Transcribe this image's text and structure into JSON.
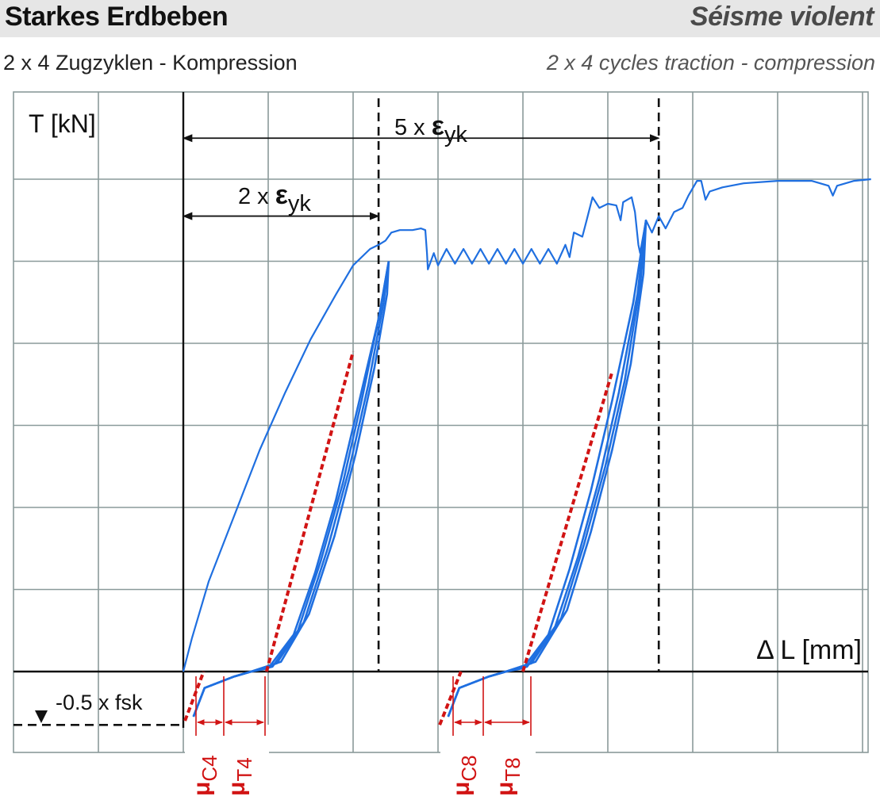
{
  "header": {
    "title_de": "Starkes Erdbeben",
    "title_fr": "Séisme violent"
  },
  "subtitle": {
    "de": "2 x 4 Zugzyklen - Kompression",
    "fr": "2 x 4 cycles traction - compression"
  },
  "colors": {
    "curve": "#1f6fe0",
    "fit": "#d11414",
    "grid": "#8a9a9a",
    "header_bg": "#e6e6e6",
    "ink": "#111111"
  },
  "chart_data": {
    "type": "line",
    "title": "Starkes Erdbeben",
    "ylabel": "T [kN]",
    "xlabel": "Δ L [mm]",
    "grid": true,
    "x_range": [
      -2,
      8.1
    ],
    "y_range": [
      -1,
      7
    ],
    "series": [
      {
        "points": [
          [
            0,
            0
          ],
          [
            0.1,
            0.4
          ],
          [
            0.3,
            1.1
          ],
          [
            0.6,
            1.9
          ],
          [
            0.9,
            2.7
          ],
          [
            1.2,
            3.4
          ],
          [
            1.5,
            4.05
          ],
          [
            1.8,
            4.6
          ],
          [
            2.0,
            4.95
          ],
          [
            2.2,
            5.15
          ],
          [
            2.3,
            5.2
          ],
          [
            2.38,
            5.25
          ],
          [
            2.45,
            5.35
          ],
          [
            2.55,
            5.38
          ],
          [
            2.7,
            5.38
          ],
          [
            2.8,
            5.4
          ],
          [
            2.85,
            5.38
          ],
          [
            2.87,
            5.1
          ],
          [
            2.88,
            4.9
          ],
          [
            2.95,
            5.1
          ],
          [
            3.0,
            4.95
          ],
          [
            3.1,
            5.15
          ],
          [
            3.2,
            4.97
          ],
          [
            3.3,
            5.15
          ],
          [
            3.4,
            4.97
          ],
          [
            3.5,
            5.15
          ],
          [
            3.6,
            4.97
          ],
          [
            3.7,
            5.15
          ],
          [
            3.8,
            4.97
          ],
          [
            3.9,
            5.15
          ],
          [
            4.0,
            4.97
          ],
          [
            4.1,
            5.15
          ],
          [
            4.2,
            4.97
          ],
          [
            4.3,
            5.15
          ],
          [
            4.4,
            4.97
          ],
          [
            4.5,
            5.2
          ],
          [
            4.55,
            5.05
          ],
          [
            4.6,
            5.35
          ],
          [
            4.7,
            5.3
          ],
          [
            4.75,
            5.5
          ],
          [
            4.82,
            5.78
          ],
          [
            4.9,
            5.65
          ],
          [
            5.0,
            5.7
          ],
          [
            5.1,
            5.68
          ],
          [
            5.15,
            5.5
          ],
          [
            5.18,
            5.72
          ],
          [
            5.28,
            5.78
          ],
          [
            5.32,
            5.6
          ],
          [
            5.36,
            5.2
          ],
          [
            5.38,
            5.1
          ],
          [
            5.45,
            5.5
          ],
          [
            5.52,
            5.35
          ],
          [
            5.6,
            5.55
          ],
          [
            5.68,
            5.4
          ],
          [
            5.78,
            5.6
          ],
          [
            5.88,
            5.65
          ],
          [
            5.95,
            5.8
          ],
          [
            6.05,
            5.98
          ],
          [
            6.1,
            5.98
          ],
          [
            6.15,
            5.75
          ],
          [
            6.2,
            5.85
          ],
          [
            6.35,
            5.9
          ],
          [
            6.6,
            5.95
          ],
          [
            7.0,
            5.98
          ],
          [
            7.4,
            5.98
          ],
          [
            7.6,
            5.92
          ],
          [
            7.65,
            5.8
          ],
          [
            7.7,
            5.92
          ],
          [
            7.9,
            5.98
          ],
          [
            8.1,
            6.0
          ]
        ]
      },
      {
        "points": [
          [
            0.12,
            -0.55
          ],
          [
            0.25,
            -0.2
          ],
          [
            0.6,
            -0.06
          ],
          [
            0.8,
            0
          ],
          [
            1.0,
            0.04
          ],
          [
            1.3,
            0.45
          ],
          [
            1.55,
            1.2
          ],
          [
            1.8,
            2.1
          ],
          [
            2.05,
            3.2
          ],
          [
            2.3,
            4.3
          ],
          [
            2.42,
            5.0
          ]
        ]
      },
      {
        "points": [
          [
            0.12,
            -0.55
          ],
          [
            0.25,
            -0.2
          ],
          [
            0.6,
            -0.06
          ],
          [
            0.8,
            0
          ],
          [
            1.05,
            0.06
          ],
          [
            1.35,
            0.5
          ],
          [
            1.62,
            1.35
          ],
          [
            1.88,
            2.3
          ],
          [
            2.1,
            3.3
          ],
          [
            2.32,
            4.4
          ],
          [
            2.42,
            5.0
          ]
        ]
      },
      {
        "points": [
          [
            0.12,
            -0.55
          ],
          [
            0.25,
            -0.2
          ],
          [
            0.6,
            -0.06
          ],
          [
            0.8,
            0
          ],
          [
            1.1,
            0.1
          ],
          [
            1.42,
            0.6
          ],
          [
            1.7,
            1.5
          ],
          [
            1.95,
            2.45
          ],
          [
            2.18,
            3.5
          ],
          [
            2.36,
            4.5
          ],
          [
            2.42,
            5.0
          ]
        ]
      },
      {
        "points": [
          [
            0.12,
            -0.55
          ],
          [
            0.25,
            -0.2
          ],
          [
            0.6,
            -0.06
          ],
          [
            0.8,
            0
          ],
          [
            1.15,
            0.12
          ],
          [
            1.48,
            0.7
          ],
          [
            1.78,
            1.65
          ],
          [
            2.03,
            2.65
          ],
          [
            2.25,
            3.7
          ],
          [
            2.4,
            4.6
          ],
          [
            2.42,
            5.0
          ]
        ]
      },
      {
        "points": [
          [
            3.12,
            -0.55
          ],
          [
            3.25,
            -0.2
          ],
          [
            3.6,
            -0.06
          ],
          [
            3.8,
            0
          ],
          [
            4.0,
            0.04
          ],
          [
            4.3,
            0.45
          ],
          [
            4.55,
            1.25
          ],
          [
            4.8,
            2.2
          ],
          [
            5.05,
            3.3
          ],
          [
            5.3,
            4.5
          ],
          [
            5.45,
            5.5
          ]
        ]
      },
      {
        "points": [
          [
            3.12,
            -0.55
          ],
          [
            3.25,
            -0.2
          ],
          [
            3.6,
            -0.06
          ],
          [
            3.8,
            0
          ],
          [
            4.05,
            0.06
          ],
          [
            4.38,
            0.55
          ],
          [
            4.65,
            1.4
          ],
          [
            4.9,
            2.35
          ],
          [
            5.13,
            3.4
          ],
          [
            5.35,
            4.6
          ],
          [
            5.45,
            5.5
          ]
        ]
      },
      {
        "points": [
          [
            3.12,
            -0.55
          ],
          [
            3.25,
            -0.2
          ],
          [
            3.6,
            -0.06
          ],
          [
            3.8,
            0
          ],
          [
            4.1,
            0.1
          ],
          [
            4.45,
            0.65
          ],
          [
            4.72,
            1.55
          ],
          [
            4.97,
            2.5
          ],
          [
            5.2,
            3.55
          ],
          [
            5.38,
            4.7
          ],
          [
            5.45,
            5.5
          ]
        ]
      },
      {
        "points": [
          [
            3.12,
            -0.55
          ],
          [
            3.25,
            -0.2
          ],
          [
            3.6,
            -0.06
          ],
          [
            3.8,
            0
          ],
          [
            4.15,
            0.12
          ],
          [
            4.52,
            0.75
          ],
          [
            4.8,
            1.7
          ],
          [
            5.05,
            2.7
          ],
          [
            5.27,
            3.75
          ],
          [
            5.42,
            4.85
          ],
          [
            5.45,
            5.5
          ]
        ]
      }
    ],
    "fit_lines": [
      [
        [
          0.02,
          -0.6
        ],
        [
          0.24,
          0
        ]
      ],
      [
        [
          0.98,
          0
        ],
        [
          2.0,
          3.9
        ]
      ],
      [
        [
          3.02,
          -0.65
        ],
        [
          3.27,
          0
        ]
      ],
      [
        [
          4.0,
          0
        ],
        [
          5.05,
          3.65
        ]
      ]
    ],
    "reference_lines": {
      "vertical": [
        2.3,
        5.6
      ],
      "horizontal": [
        -0.65
      ]
    },
    "dimensions": [
      {
        "from": 0,
        "to": 2.3,
        "y": 5.55,
        "label": "2 x εyk"
      },
      {
        "from": 0,
        "to": 5.6,
        "y": 6.5,
        "label": "5 x εyk"
      }
    ],
    "annotations": {
      "fsk": "-0.5 x fsk",
      "mu_labels": [
        "μC4",
        "μT4",
        "μC8",
        "μT8"
      ]
    }
  }
}
